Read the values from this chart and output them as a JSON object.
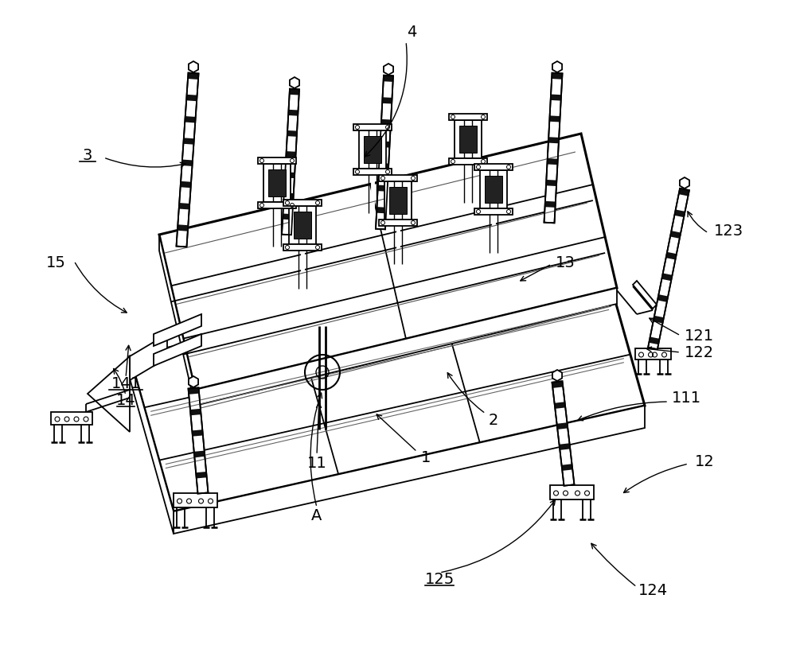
{
  "bg_color": "#ffffff",
  "lc": "#000000",
  "lw": 1.3,
  "tlw": 2.2,
  "fig_w": 10.0,
  "fig_h": 8.21,
  "dpi": 100
}
